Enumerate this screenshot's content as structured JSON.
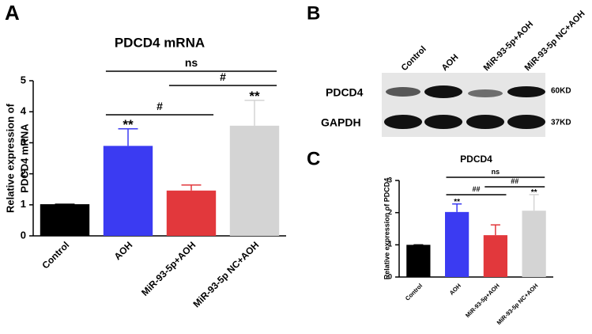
{
  "panels": [
    "A",
    "B",
    "C"
  ],
  "blot": {
    "lanes": [
      "Control",
      "AOH",
      "MiR-93-5p+AOH",
      "MiR-93-5p NC+AOH"
    ],
    "rows": [
      "PDCD4",
      "GAPDH"
    ],
    "sizes": [
      "60KD",
      "37KD"
    ]
  },
  "chart_data": [
    {
      "type": "bar",
      "title": "PDCD4 mRNA",
      "ylabel": [
        "Relative expression of",
        "PDCD4 mRNA"
      ],
      "categories": [
        "Control",
        "AOH",
        "MiR-93-5p+AOH",
        "MiR-93-5p NC+AOH"
      ],
      "values": [
        1.02,
        2.9,
        1.46,
        3.55
      ],
      "errors": [
        0,
        0.55,
        0.18,
        0.82
      ],
      "colors": [
        "#000000",
        "#3b3bf2",
        "#e2383c",
        "#d4d4d4"
      ],
      "significance": [
        null,
        "**",
        null,
        "**"
      ],
      "brackets": [
        {
          "label": "#",
          "from": 1,
          "to": 2
        },
        {
          "label": "#",
          "from": 2,
          "to": 3
        },
        {
          "label": "ns",
          "from": 1,
          "to": 3
        }
      ],
      "ylim": [
        0,
        5
      ],
      "yticks": [
        0,
        1,
        2,
        3,
        4,
        5
      ]
    },
    {
      "type": "bar",
      "title": "PDCD4",
      "ylabel": [
        "Relative expression of  PDCD4"
      ],
      "categories": [
        "Control",
        "AOH",
        "MiR-93-5p+AOH",
        "MiR-93-5p NC+AOH"
      ],
      "values": [
        1.0,
        2.02,
        1.3,
        2.06
      ],
      "errors": [
        0,
        0.25,
        0.32,
        0.5
      ],
      "colors": [
        "#000000",
        "#3b3bf2",
        "#e2383c",
        "#d4d4d4"
      ],
      "significance": [
        null,
        "**",
        null,
        "**"
      ],
      "brackets": [
        {
          "label": "##",
          "from": 1,
          "to": 2
        },
        {
          "label": "##",
          "from": 2,
          "to": 3
        },
        {
          "label": "ns",
          "from": 1,
          "to": 3
        }
      ],
      "ylim": [
        0,
        3
      ],
      "yticks": [
        0,
        1,
        2,
        3
      ]
    }
  ]
}
